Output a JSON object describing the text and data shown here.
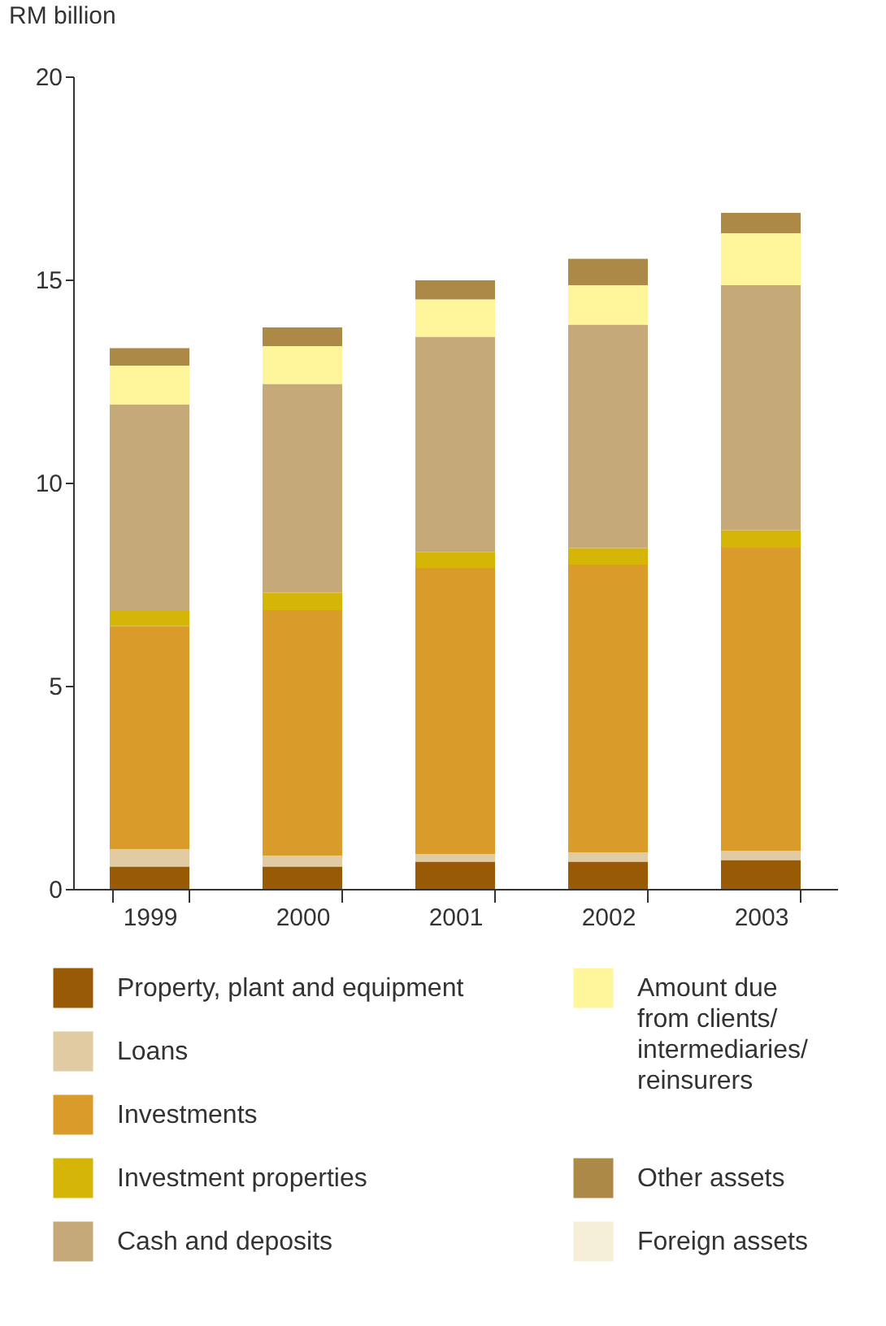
{
  "chart_data": {
    "type": "bar",
    "stacked": true,
    "ylabel": "RM billion",
    "categories": [
      "1999",
      "2000",
      "2001",
      "2002",
      "2003"
    ],
    "ylim": [
      0,
      20
    ],
    "yticks": [
      0,
      5,
      10,
      15,
      20
    ],
    "grid": false,
    "legend": "bottom",
    "series": [
      {
        "name": "Property, plant and equipment",
        "color": "#995a05",
        "values": [
          0.55,
          0.55,
          0.67,
          0.67,
          0.71
        ]
      },
      {
        "name": "Loans",
        "color": "#e1cba3",
        "values": [
          0.43,
          0.27,
          0.19,
          0.23,
          0.23
        ]
      },
      {
        "name": "Investments",
        "color": "#d99b2a",
        "values": [
          5.49,
          6.04,
          7.04,
          7.08,
          7.46
        ]
      },
      {
        "name": "Investment properties",
        "color": "#d5b505",
        "values": [
          0.37,
          0.43,
          0.39,
          0.41,
          0.43
        ]
      },
      {
        "name": "Cash and deposits",
        "color": "#c6a978",
        "values": [
          5.08,
          5.14,
          5.3,
          5.5,
          6.03
        ]
      },
      {
        "name": "Amount due from clients/intermediaries/reinsurers",
        "color": "#fff59a",
        "values": [
          0.96,
          0.93,
          0.92,
          0.97,
          1.28
        ]
      },
      {
        "name": "Other assets",
        "color": "#ad8947",
        "values": [
          0.43,
          0.46,
          0.47,
          0.65,
          0.5
        ]
      },
      {
        "name": "Foreign assets",
        "color": "#f5efd8",
        "values": [
          null,
          null,
          null,
          null,
          null
        ]
      }
    ]
  }
}
